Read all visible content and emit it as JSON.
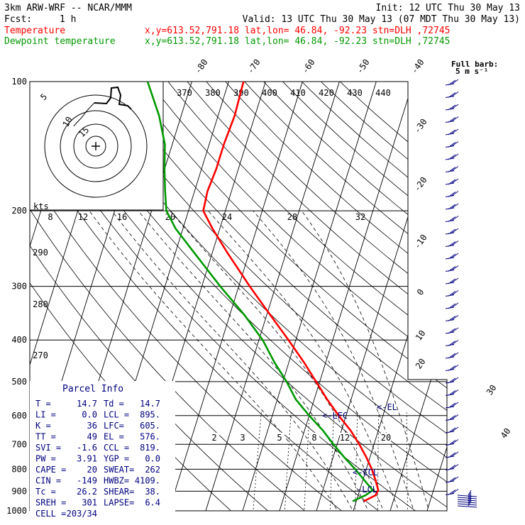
{
  "header": {
    "model": "3km ARW-WRF -- NCAR/MMM",
    "init": "Init: 12 UTC Thu 30 May 13",
    "fcst_label": "Fcst:",
    "fcst_value": "1 h",
    "valid": "Valid: 13 UTC Thu 30 May 13 (07 MDT Thu 30 May 13)",
    "temperature_label": "Temperature",
    "dewpoint_label": "Dewpoint temperature",
    "location": "x,y=613.52,791.18   lat,lon= 46.84, -92.23   stn=DLH ,72745",
    "colors": {
      "temperature": "#ff0000",
      "dewpoint": "#009900",
      "text": "#000080"
    }
  },
  "wind_note": {
    "line1": "Full barb:",
    "line2": "5 m s⁻¹"
  },
  "hodograph": {
    "unit": "kts",
    "ring_labels": [
      "5",
      "10",
      "15"
    ],
    "theta_labels": [
      "370",
      "380",
      "390",
      "400",
      "410",
      "420",
      "430",
      "440"
    ],
    "speed_ticks": [
      "8",
      "12",
      "16",
      "20",
      "24",
      "28",
      "32"
    ]
  },
  "parcel_info": {
    "title": "Parcel Info",
    "rows": [
      [
        "T  =",
        "14.7",
        "Td =",
        "14.7"
      ],
      [
        "LI =",
        "0.0",
        "LCL =",
        "895."
      ],
      [
        "K  =",
        "36",
        "LFC=",
        "605."
      ],
      [
        "TT =",
        "49",
        "EL =",
        "576."
      ],
      [
        "SVI =",
        "-1.6",
        "CCL =",
        "819."
      ],
      [
        "PW =",
        "3.91",
        "YGP =",
        "0.0"
      ],
      [
        "CAPE =",
        "20",
        "SWEAT=",
        "262"
      ],
      [
        "CIN =",
        "-149",
        "HWBZ=",
        "4109."
      ],
      [
        "Tc =",
        "26.2",
        "SHEAR=",
        "38."
      ],
      [
        "SREH =",
        "301",
        "LAPSE=",
        "6.4"
      ],
      [
        "CELL =",
        "203/34",
        "",
        ""
      ]
    ]
  },
  "level_labels": {
    "lcl": "-LCL",
    "ccl": "<-CCL",
    "lfc": "<-LFC",
    "el": "<-EL"
  },
  "chart_data": {
    "type": "line",
    "chart_kind": "skew-T log-P sounding",
    "y_scale": "log",
    "ylim": [
      1000,
      100
    ],
    "pressure_ticks": [
      "100",
      "200",
      "300",
      "400",
      "500",
      "600",
      "700",
      "800",
      "900",
      "1000"
    ],
    "isotherm_labels": [
      "-80",
      "-70",
      "-60",
      "-50",
      "-40",
      "-30",
      "-20",
      "-10",
      "0",
      "10",
      "20",
      "30",
      "40"
    ],
    "theta_labels_left": [
      "290",
      "280",
      "270"
    ],
    "mixing_ratio_labels": [
      "2",
      "3",
      "5",
      "8",
      "12",
      "20"
    ],
    "series": [
      {
        "name": "Temperature",
        "color": "#ff0000",
        "points": [
          {
            "p": 950,
            "t": 12.0
          },
          {
            "p": 920,
            "t": 14.7
          },
          {
            "p": 895,
            "t": 15.0
          },
          {
            "p": 850,
            "t": 13.5
          },
          {
            "p": 800,
            "t": 11.5
          },
          {
            "p": 750,
            "t": 9.0
          },
          {
            "p": 700,
            "t": 6.0
          },
          {
            "p": 650,
            "t": 2.5
          },
          {
            "p": 600,
            "t": -2.0
          },
          {
            "p": 550,
            "t": -6.5
          },
          {
            "p": 500,
            "t": -11.0
          },
          {
            "p": 450,
            "t": -16.0
          },
          {
            "p": 400,
            "t": -22.0
          },
          {
            "p": 350,
            "t": -29.0
          },
          {
            "p": 300,
            "t": -37.0
          },
          {
            "p": 250,
            "t": -46.0
          },
          {
            "p": 220,
            "t": -52.0
          },
          {
            "p": 200,
            "t": -56.0
          },
          {
            "p": 180,
            "t": -56.5
          },
          {
            "p": 160,
            "t": -56.0
          },
          {
            "p": 140,
            "t": -56.0
          },
          {
            "p": 120,
            "t": -55.5
          },
          {
            "p": 100,
            "t": -56.0
          }
        ]
      },
      {
        "name": "Dewpoint temperature",
        "color": "#009900",
        "points": [
          {
            "p": 950,
            "t": 9.0
          },
          {
            "p": 920,
            "t": 12.0
          },
          {
            "p": 895,
            "t": 13.5
          },
          {
            "p": 850,
            "t": 10.5
          },
          {
            "p": 800,
            "t": 7.0
          },
          {
            "p": 750,
            "t": 3.0
          },
          {
            "p": 700,
            "t": -1.0
          },
          {
            "p": 650,
            "t": -5.0
          },
          {
            "p": 600,
            "t": -10.0
          },
          {
            "p": 550,
            "t": -15.0
          },
          {
            "p": 500,
            "t": -19.0
          },
          {
            "p": 450,
            "t": -24.0
          },
          {
            "p": 400,
            "t": -29.0
          },
          {
            "p": 350,
            "t": -36.0
          },
          {
            "p": 300,
            "t": -45.0
          },
          {
            "p": 250,
            "t": -55.0
          },
          {
            "p": 220,
            "t": -62.0
          },
          {
            "p": 200,
            "t": -66.0
          },
          {
            "p": 180,
            "t": -68.0
          },
          {
            "p": 160,
            "t": -70.0
          },
          {
            "p": 140,
            "t": -72.0
          },
          {
            "p": 120,
            "t": -76.0
          },
          {
            "p": 100,
            "t": -82.0
          }
        ]
      }
    ]
  }
}
